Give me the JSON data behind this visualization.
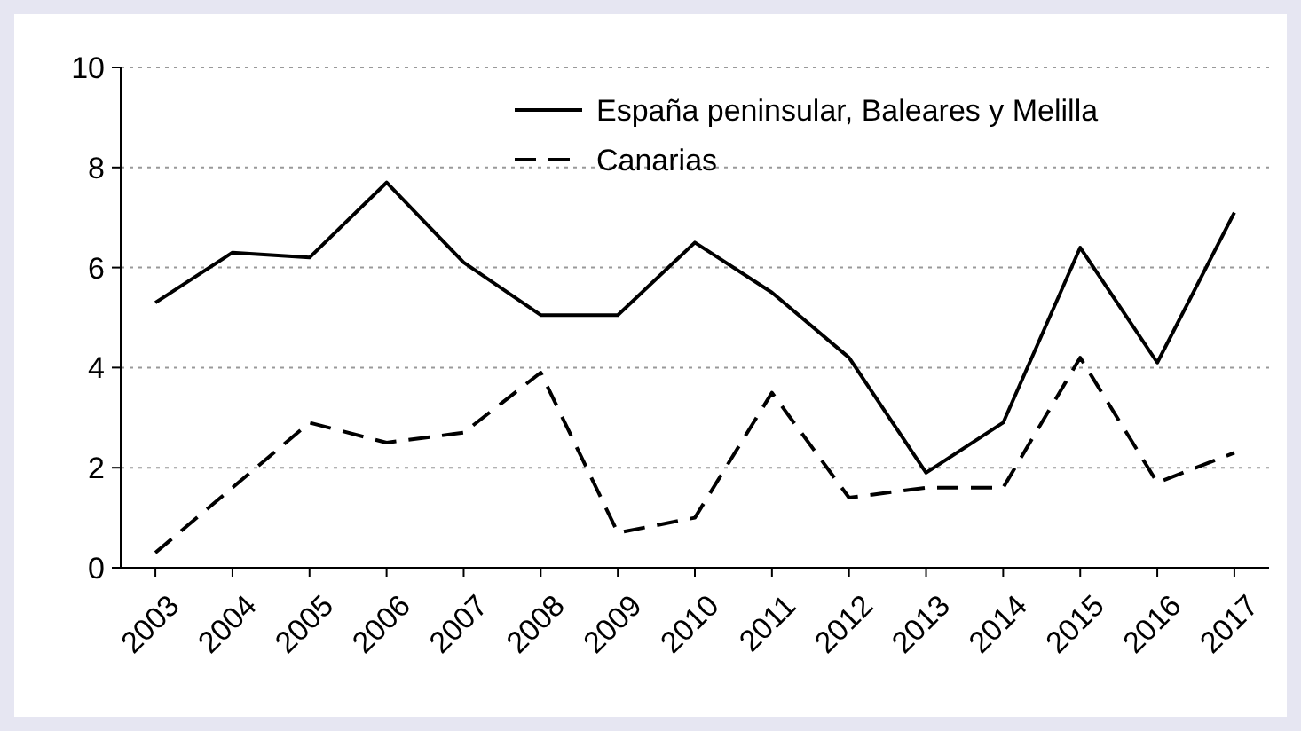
{
  "chart_data": {
    "type": "line",
    "categories": [
      "2003",
      "2004",
      "2005",
      "2006",
      "2007",
      "2008",
      "2009",
      "2010",
      "2011",
      "2012",
      "2013",
      "2014",
      "2015",
      "2016",
      "2017"
    ],
    "series": [
      {
        "name": "España peninsular, Baleares y Melilla",
        "color": "#000000",
        "line_style": "solid",
        "values": [
          5.3,
          6.3,
          6.2,
          7.7,
          6.1,
          5.05,
          5.05,
          6.5,
          5.5,
          4.2,
          1.9,
          2.9,
          6.4,
          4.1,
          7.1
        ]
      },
      {
        "name": "Canarias",
        "color": "#000000",
        "line_style": "dashed",
        "values": [
          0.3,
          1.6,
          2.9,
          2.5,
          2.7,
          3.9,
          0.7,
          1.0,
          3.5,
          1.4,
          1.6,
          1.6,
          4.2,
          1.7,
          2.3
        ]
      }
    ],
    "ylim": [
      0,
      10
    ],
    "yticks": [
      0,
      2,
      4,
      6,
      8,
      10
    ],
    "grid": "y",
    "legend": "top right",
    "marker": "none"
  }
}
